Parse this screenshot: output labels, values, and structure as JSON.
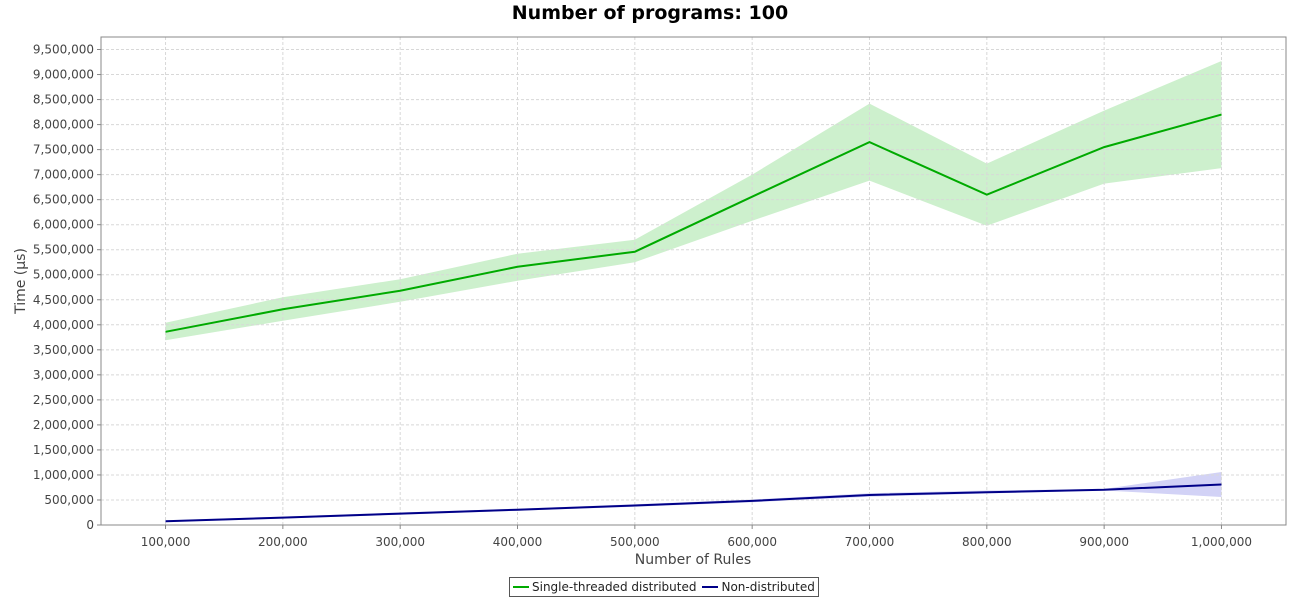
{
  "chart_data": {
    "type": "line",
    "title": "Number of programs: 100",
    "xlabel": "Number of Rules",
    "ylabel": "Time (µs)",
    "x": [
      100000,
      200000,
      300000,
      400000,
      500000,
      600000,
      700000,
      800000,
      900000,
      1000000
    ],
    "x_ticks": [
      "100,000",
      "200,000",
      "300,000",
      "400,000",
      "500,000",
      "600,000",
      "700,000",
      "800,000",
      "900,000",
      "1,000,000"
    ],
    "xlim": [
      45000,
      1055000
    ],
    "ylim": [
      0,
      9750000
    ],
    "y_ticks": [
      {
        "value": 0,
        "label": "0"
      },
      {
        "value": 500000,
        "label": "500,000"
      },
      {
        "value": 1000000,
        "label": "1,000,000"
      },
      {
        "value": 1500000,
        "label": "1,500,000"
      },
      {
        "value": 2000000,
        "label": "2,000,000"
      },
      {
        "value": 2500000,
        "label": "2,500,000"
      },
      {
        "value": 3000000,
        "label": "3,000,000"
      },
      {
        "value": 3500000,
        "label": "3,500,000"
      },
      {
        "value": 4000000,
        "label": "4,000,000"
      },
      {
        "value": 4500000,
        "label": "4,500,000"
      },
      {
        "value": 5000000,
        "label": "5,000,000"
      },
      {
        "value": 5500000,
        "label": "5,500,000"
      },
      {
        "value": 6000000,
        "label": "6,000,000"
      },
      {
        "value": 6500000,
        "label": "6,500,000"
      },
      {
        "value": 7000000,
        "label": "7,000,000"
      },
      {
        "value": 7500000,
        "label": "7,500,000"
      },
      {
        "value": 8000000,
        "label": "8,000,000"
      },
      {
        "value": 8500000,
        "label": "8,500,000"
      },
      {
        "value": 9000000,
        "label": "9,000,000"
      },
      {
        "value": 9500000,
        "label": "9,500,000"
      }
    ],
    "grid": true,
    "legend_position": "bottom-center",
    "series": [
      {
        "name": "Single-threaded distributed",
        "color": "#00aa00",
        "band_color": "#cdf0cd",
        "values": [
          3860000,
          4310000,
          4680000,
          5160000,
          5460000,
          6560000,
          7650000,
          6600000,
          7550000,
          8200000
        ],
        "lower": [
          3690000,
          4080000,
          4460000,
          4880000,
          5250000,
          6080000,
          6880000,
          5980000,
          6820000,
          7130000
        ],
        "upper": [
          4040000,
          4550000,
          4910000,
          5420000,
          5700000,
          7000000,
          8420000,
          7220000,
          8280000,
          9270000
        ]
      },
      {
        "name": "Non-distributed",
        "color": "#000088",
        "band_color": "#d2d2f6",
        "values": [
          75000,
          148000,
          228000,
          305000,
          390000,
          482000,
          600000,
          655000,
          705000,
          810000
        ],
        "lower": [
          60000,
          130000,
          205000,
          285000,
          365000,
          455000,
          565000,
          630000,
          690000,
          560000
        ],
        "upper": [
          90000,
          168000,
          250000,
          325000,
          415000,
          510000,
          635000,
          690000,
          720000,
          1060000
        ]
      }
    ]
  }
}
